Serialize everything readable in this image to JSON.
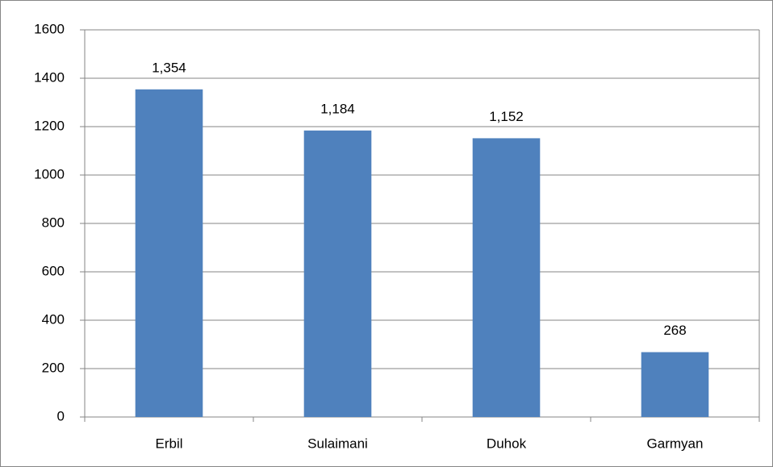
{
  "chart_data": {
    "type": "bar",
    "categories": [
      "Erbil",
      "Sulaimani",
      "Duhok",
      "Garmyan"
    ],
    "values": [
      1354,
      1184,
      1152,
      268
    ],
    "value_labels": [
      "1,354",
      "1,184",
      "1,152",
      "268"
    ],
    "color": "#4f81bd",
    "ylim": [
      0,
      1600
    ],
    "yticks": [
      0,
      200,
      400,
      600,
      800,
      1000,
      1200,
      1400,
      1600
    ],
    "grid": true
  }
}
